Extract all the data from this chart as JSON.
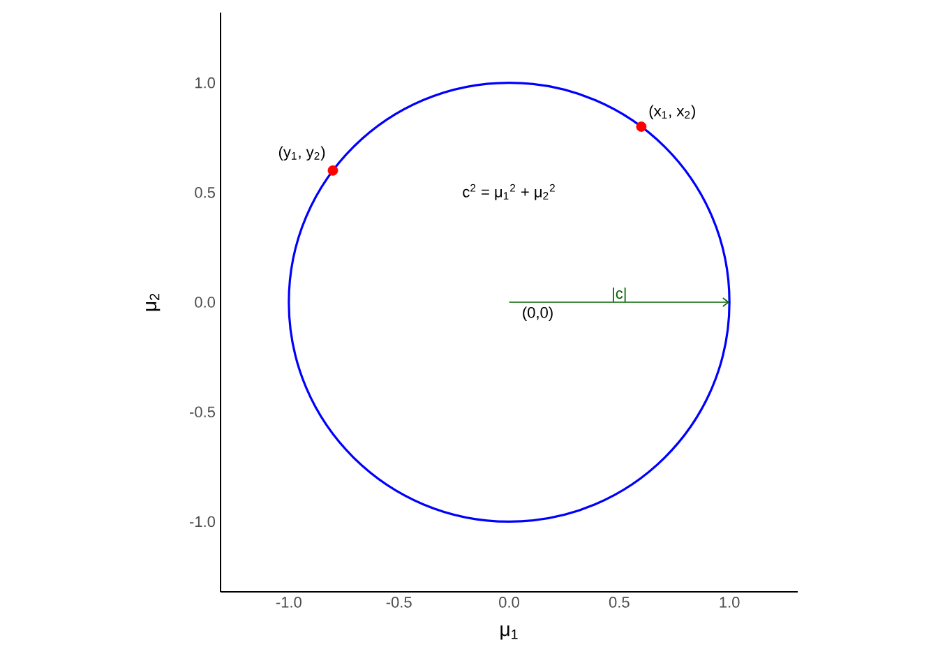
{
  "chart_data": {
    "type": "scatter",
    "xlabel": "μ$_{1}$",
    "ylabel": "μ$_{2}$",
    "xlim": [
      -1.31,
      1.31
    ],
    "ylim": [
      -1.32,
      1.32
    ],
    "xticks": [
      {
        "value": -1,
        "label": "-1.0"
      },
      {
        "value": -0.5,
        "label": "-0.5"
      },
      {
        "value": 0,
        "label": "0.0"
      },
      {
        "value": 0.5,
        "label": "0.5"
      },
      {
        "value": 1,
        "label": "1.0"
      }
    ],
    "yticks": [
      {
        "value": -1,
        "label": "-1.0"
      },
      {
        "value": -0.5,
        "label": "-0.5"
      },
      {
        "value": 0,
        "label": "0.0"
      },
      {
        "value": 0.5,
        "label": "0.5"
      },
      {
        "value": 1,
        "label": "1.0"
      }
    ],
    "grid": false,
    "series": [
      {
        "color": "#ff0000",
        "x": [
          0.6,
          -0.8
        ],
        "values": [
          0.8,
          0.6
        ]
      }
    ],
    "annotations": [
      {
        "text": "(x$_{1}$, x$_{2}$)",
        "x": 0.6,
        "y": 0.8
      },
      {
        "text": "(y$_{1}$, y$_{2}$)",
        "x": -0.8,
        "y": 0.6
      },
      "(0,0)",
      "|c|",
      "c$^{2}$ = μ$_{1}$$^{2}$ + μ$_{2}$$^{2}$"
    ]
  }
}
